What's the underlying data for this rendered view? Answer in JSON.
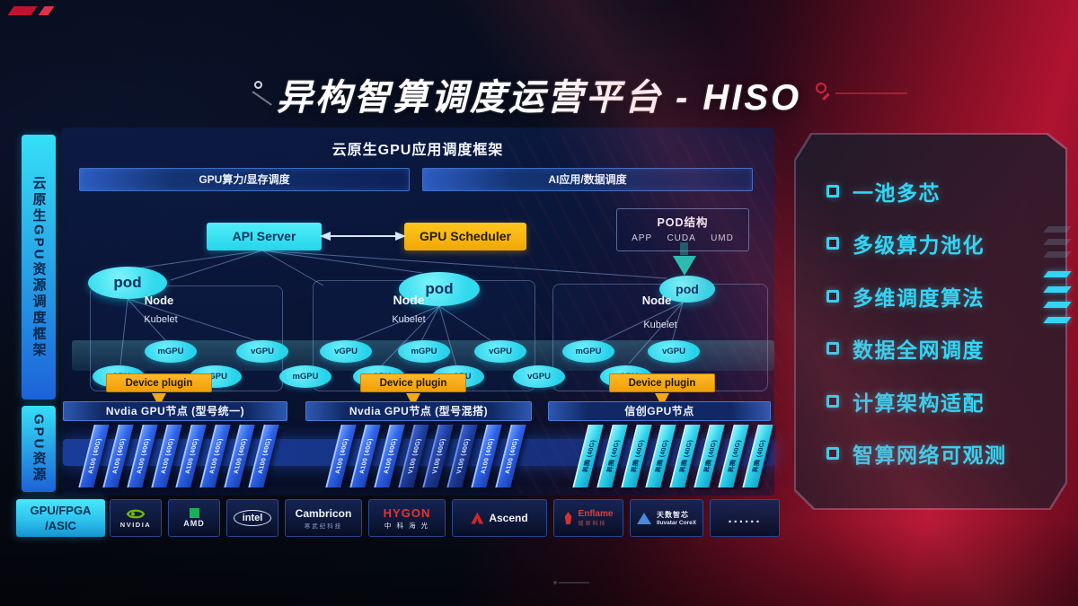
{
  "title": "异构智算调度运营平台 - HISO",
  "sidebar": {
    "framework_label": "云原生GPU资源调度框架",
    "resource_label": "GPU资源"
  },
  "app_framework": {
    "title": "云原生GPU应用调度框架",
    "bars": [
      "GPU算力/显存调度",
      "AI应用/数据调度"
    ]
  },
  "scheduler": {
    "api_server": "API Server",
    "gpu_scheduler": "GPU Scheduler"
  },
  "pod_structure": {
    "title": "POD结构",
    "layers": [
      "APP",
      "CUDA",
      "UMD"
    ]
  },
  "node_groups": [
    {
      "pod": "pod",
      "node": "Node",
      "kubelet": "Kubelet",
      "device_plugin": "Device plugin"
    },
    {
      "pod": "pod",
      "node": "Node",
      "kubelet": "Kubelet",
      "device_plugin": "Device plugin"
    },
    {
      "pod": "pod",
      "node": "Node",
      "kubelet": "Kubelet",
      "device_plugin": "Device plugin"
    }
  ],
  "gpu_ovals": [
    "vGPU",
    "mGPU",
    "vGPU",
    "vGPU",
    "mGPU",
    "vGPU",
    "vGPU",
    "mGPU",
    "mGPU",
    "vGPU",
    "vGPU",
    "mGPU",
    "vGPU",
    "vGPU"
  ],
  "gpu_node_rows": [
    {
      "header": "Nvdia GPU节点 (型号统一)",
      "cards": [
        {
          "label": "A100 (40G)",
          "variant": "blue"
        },
        {
          "label": "A100 (40G)",
          "variant": "blue"
        },
        {
          "label": "A100 (40G)",
          "variant": "blue"
        },
        {
          "label": "A100 (40G)",
          "variant": "blue"
        },
        {
          "label": "A100 (40G)",
          "variant": "blue"
        },
        {
          "label": "A100 (40G)",
          "variant": "blue"
        },
        {
          "label": "A100 (40G)",
          "variant": "blue"
        },
        {
          "label": "A100 (40G)",
          "variant": "blue"
        }
      ]
    },
    {
      "header": "Nvdia GPU节点 (型号混搭)",
      "cards": [
        {
          "label": "A100 (40G)",
          "variant": "blue"
        },
        {
          "label": "A100 (40G)",
          "variant": "blue"
        },
        {
          "label": "A100 (40G)",
          "variant": "blue"
        },
        {
          "label": "V100 (40G)",
          "variant": "navy"
        },
        {
          "label": "V100 (40G)",
          "variant": "navy"
        },
        {
          "label": "V100 (40G)",
          "variant": "navy"
        },
        {
          "label": "A100 (40G)",
          "variant": "blue"
        },
        {
          "label": "A100 (40G)",
          "variant": "blue"
        }
      ]
    },
    {
      "header": "信创GPU节点",
      "cards": [
        {
          "label": "昇腾 (40G)",
          "variant": "cyan"
        },
        {
          "label": "昇腾 (40G)",
          "variant": "cyan"
        },
        {
          "label": "昇腾 (40G)",
          "variant": "cyan"
        },
        {
          "label": "昇腾 (40G)",
          "variant": "cyan"
        },
        {
          "label": "昇腾 (40G)",
          "variant": "cyan"
        },
        {
          "label": "昇腾 (40G)",
          "variant": "cyan"
        },
        {
          "label": "昇腾 (40G)",
          "variant": "cyan"
        },
        {
          "label": "昇腾 (40G)",
          "variant": "cyan"
        }
      ]
    }
  ],
  "vendor_bar": {
    "label_line1": "GPU/FPGA",
    "label_line2": "/ASIC",
    "vendors": [
      {
        "logo": "nvidia",
        "name": "NVIDIA",
        "sub": ""
      },
      {
        "logo": "amd",
        "name": "AMD",
        "sub": ""
      },
      {
        "logo": "intel",
        "name": "intel",
        "sub": ""
      },
      {
        "logo": "cambricon",
        "name": "Cambricon",
        "sub": "寒武纪科技"
      },
      {
        "logo": "hygon",
        "name": "HYGON",
        "sub": "中 科 海 光"
      },
      {
        "logo": "ascend",
        "name": "Ascend",
        "sub": ""
      },
      {
        "logo": "enflame",
        "name": "Enflame",
        "sub": "燧原科技"
      },
      {
        "logo": "iluvatar",
        "name": "天数智芯",
        "sub": "Iluvatar CoreX"
      },
      {
        "logo": "dots",
        "name": "......",
        "sub": ""
      }
    ]
  },
  "features": [
    "一池多芯",
    "多级算力池化",
    "多维调度算法",
    "数据全网调度",
    "计算架构适配",
    "智算网络可观测"
  ],
  "colors": {
    "cyan_accent": "#35d4f2",
    "box_cyan": "#3ae8f5",
    "box_amber": "#f6b40a",
    "card_blue": "#2e63e8",
    "card_navy": "#1d3a96",
    "card_cyan": "#2ed3ec",
    "brand_red": "#b01330",
    "nvidia_green": "#76b900",
    "amd_green": "#18b05a",
    "hygon_red": "#e23535"
  }
}
